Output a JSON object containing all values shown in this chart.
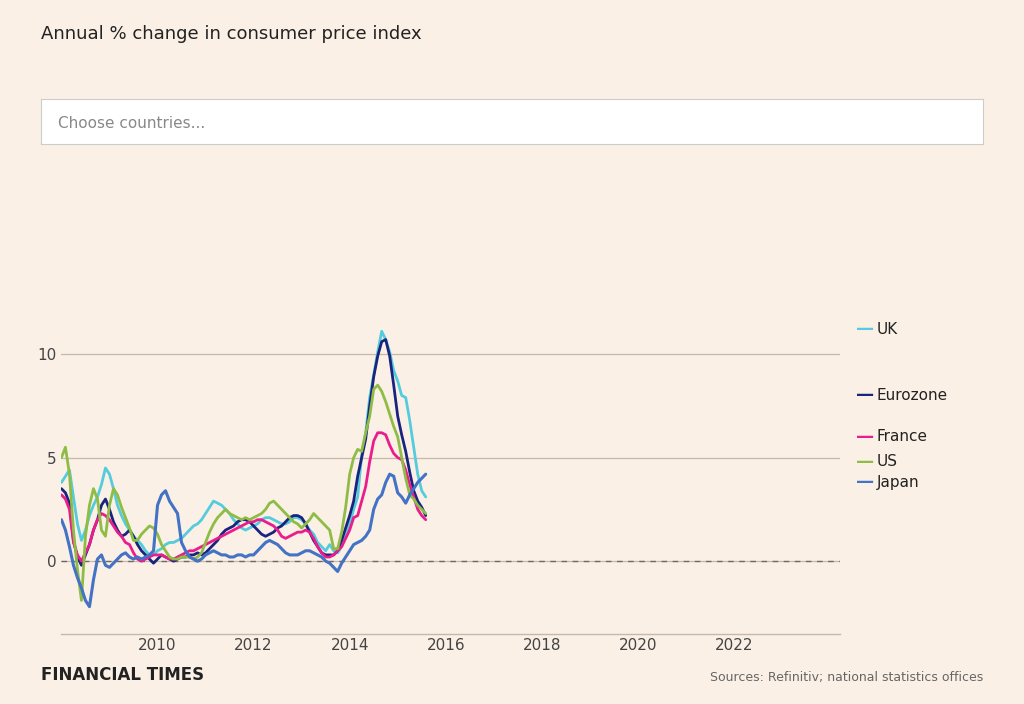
{
  "title": "Annual % change in consumer price index",
  "subtitle": "Choose countries...",
  "footer_left": "FINANCIAL TIMES",
  "footer_right": "Sources: Refinitiv; national statistics offices",
  "background_color": "#faf0e6",
  "plot_bg_color": "#faf0e6",
  "grid_color": "#c8b8a8",
  "zero_line_color": "#555555",
  "series_order": [
    "UK",
    "Eurozone",
    "France",
    "US",
    "Japan"
  ],
  "series": {
    "UK": {
      "color": "#55ccdd",
      "linewidth": 2.0,
      "data": [
        3.8,
        4.1,
        4.4,
        3.1,
        1.8,
        1.0,
        1.5,
        2.2,
        2.7,
        3.1,
        3.7,
        4.5,
        4.2,
        3.5,
        2.7,
        2.2,
        1.8,
        1.5,
        1.2,
        1.0,
        0.8,
        0.5,
        0.3,
        0.3,
        0.5,
        0.6,
        0.8,
        0.9,
        0.9,
        1.0,
        1.1,
        1.3,
        1.5,
        1.7,
        1.8,
        2.0,
        2.3,
        2.6,
        2.9,
        2.8,
        2.7,
        2.5,
        2.3,
        2.0,
        1.8,
        1.6,
        1.5,
        1.6,
        1.7,
        1.8,
        2.0,
        2.1,
        2.1,
        2.0,
        1.9,
        1.8,
        1.8,
        1.9,
        2.1,
        2.1,
        2.0,
        1.8,
        1.5,
        1.3,
        0.9,
        0.7,
        0.5,
        0.8,
        0.5,
        0.4,
        0.7,
        1.2,
        1.8,
        2.5,
        3.1,
        5.1,
        6.2,
        7.9,
        9.0,
        10.1,
        11.1,
        10.7,
        10.1,
        9.2,
        8.7,
        8.0,
        7.9,
        6.8,
        5.5,
        4.2,
        3.4,
        3.1
      ]
    },
    "Eurozone": {
      "color": "#1a237e",
      "linewidth": 2.0,
      "data": [
        3.5,
        3.3,
        2.8,
        1.0,
        0.2,
        -0.2,
        0.3,
        0.8,
        1.5,
        2.0,
        2.7,
        3.0,
        2.5,
        1.9,
        1.5,
        1.2,
        1.3,
        1.5,
        1.2,
        0.8,
        0.5,
        0.3,
        0.1,
        -0.1,
        0.1,
        0.3,
        0.2,
        0.1,
        0.0,
        0.1,
        0.2,
        0.2,
        0.3,
        0.3,
        0.4,
        0.3,
        0.4,
        0.6,
        0.8,
        1.0,
        1.3,
        1.5,
        1.6,
        1.7,
        1.9,
        2.0,
        2.0,
        1.9,
        1.7,
        1.5,
        1.3,
        1.2,
        1.3,
        1.4,
        1.6,
        1.7,
        1.9,
        2.1,
        2.2,
        2.2,
        2.1,
        1.8,
        1.4,
        1.0,
        0.7,
        0.4,
        0.3,
        0.3,
        0.3,
        0.5,
        1.0,
        1.6,
        2.2,
        2.9,
        4.1,
        5.0,
        5.9,
        7.5,
        8.9,
        9.9,
        10.6,
        10.7,
        9.9,
        8.5,
        7.0,
        6.1,
        5.3,
        4.3,
        3.4,
        2.9,
        2.6,
        2.2
      ]
    },
    "France": {
      "color": "#e91e8c",
      "linewidth": 2.0,
      "data": [
        3.2,
        3.0,
        2.5,
        0.9,
        0.3,
        0.0,
        0.4,
        0.8,
        1.5,
        2.0,
        2.3,
        2.2,
        2.0,
        1.7,
        1.4,
        1.2,
        0.9,
        0.8,
        0.4,
        0.1,
        0.0,
        0.1,
        0.2,
        0.3,
        0.3,
        0.3,
        0.2,
        0.1,
        0.1,
        0.2,
        0.3,
        0.4,
        0.5,
        0.5,
        0.6,
        0.7,
        0.8,
        0.9,
        1.0,
        1.1,
        1.2,
        1.3,
        1.4,
        1.5,
        1.6,
        1.7,
        1.8,
        1.9,
        1.9,
        2.0,
        2.0,
        1.9,
        1.8,
        1.7,
        1.5,
        1.2,
        1.1,
        1.2,
        1.3,
        1.4,
        1.4,
        1.5,
        1.4,
        1.1,
        0.7,
        0.4,
        0.2,
        0.2,
        0.3,
        0.5,
        0.7,
        1.1,
        1.5,
        2.1,
        2.2,
        2.9,
        3.6,
        4.8,
        5.8,
        6.2,
        6.2,
        6.1,
        5.6,
        5.2,
        5.0,
        4.9,
        4.4,
        3.7,
        3.1,
        2.5,
        2.2,
        2.0
      ]
    },
    "US": {
      "color": "#8fbc45",
      "linewidth": 2.0,
      "data": [
        5.0,
        5.5,
        4.2,
        1.5,
        -0.4,
        -1.9,
        1.2,
        2.7,
        3.5,
        3.0,
        1.5,
        1.2,
        2.7,
        3.5,
        3.2,
        2.6,
        2.1,
        1.6,
        1.0,
        1.0,
        1.3,
        1.5,
        1.7,
        1.6,
        1.3,
        0.8,
        0.5,
        0.2,
        0.1,
        0.1,
        0.2,
        0.2,
        0.2,
        0.1,
        0.2,
        0.4,
        0.9,
        1.4,
        1.8,
        2.1,
        2.3,
        2.5,
        2.3,
        2.2,
        2.1,
        2.0,
        2.1,
        2.0,
        2.1,
        2.2,
        2.3,
        2.5,
        2.8,
        2.9,
        2.7,
        2.5,
        2.3,
        2.1,
        1.9,
        1.8,
        1.6,
        1.8,
        2.0,
        2.3,
        2.1,
        1.9,
        1.7,
        1.5,
        0.6,
        0.6,
        1.4,
        2.6,
        4.2,
        5.0,
        5.4,
        5.3,
        6.2,
        7.0,
        8.3,
        8.5,
        8.2,
        7.7,
        7.1,
        6.5,
        6.0,
        5.0,
        4.0,
        3.2,
        3.0,
        2.7,
        2.5,
        2.3
      ]
    },
    "Japan": {
      "color": "#4472c4",
      "linewidth": 2.2,
      "data": [
        2.0,
        1.5,
        0.7,
        -0.2,
        -0.8,
        -1.3,
        -1.9,
        -2.2,
        -0.9,
        0.1,
        0.3,
        -0.2,
        -0.3,
        -0.1,
        0.1,
        0.3,
        0.4,
        0.2,
        0.1,
        0.2,
        0.1,
        0.2,
        0.3,
        0.5,
        2.7,
        3.2,
        3.4,
        2.9,
        2.6,
        2.3,
        0.9,
        0.5,
        0.2,
        0.1,
        0.0,
        0.1,
        0.3,
        0.4,
        0.5,
        0.4,
        0.3,
        0.3,
        0.2,
        0.2,
        0.3,
        0.3,
        0.2,
        0.3,
        0.3,
        0.5,
        0.7,
        0.9,
        1.0,
        0.9,
        0.8,
        0.6,
        0.4,
        0.3,
        0.3,
        0.3,
        0.4,
        0.5,
        0.5,
        0.4,
        0.3,
        0.2,
        0.0,
        -0.1,
        -0.3,
        -0.5,
        -0.1,
        0.2,
        0.5,
        0.8,
        0.9,
        1.0,
        1.2,
        1.5,
        2.5,
        3.0,
        3.2,
        3.8,
        4.2,
        4.1,
        3.3,
        3.1,
        2.8,
        3.2,
        3.5,
        3.8,
        4.0,
        4.2
      ]
    }
  },
  "x_start": 2008.0,
  "x_step": 0.08333,
  "x_ticks": [
    2010,
    2012,
    2014,
    2016,
    2018,
    2020,
    2022
  ],
  "y_ticks": [
    0,
    5,
    10
  ],
  "ylim": [
    -3.5,
    13.5
  ],
  "xlim": [
    2008.0,
    2024.2
  ],
  "legend_names": [
    "UK",
    "Eurozone",
    "France",
    "US",
    "Japan"
  ]
}
